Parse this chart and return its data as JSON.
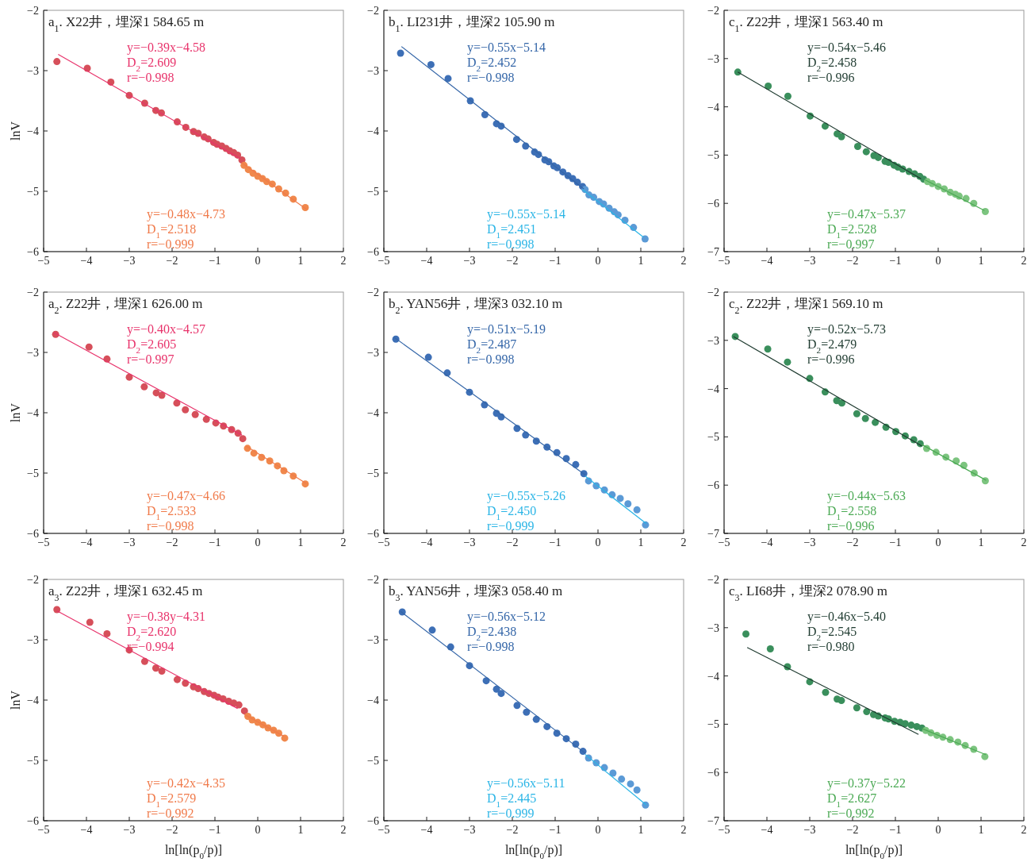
{
  "chart_data": [
    {
      "type": "scatter",
      "title": "a$_{1}$. X22井，埋深1 584.65 m",
      "ylabel": "lnV",
      "xlim": [
        -5,
        2
      ],
      "xticks": [
        -5,
        -4,
        -3,
        -2,
        -1,
        0,
        1,
        2
      ],
      "ylim": [
        -6,
        -2
      ],
      "yticks": [
        -6,
        -5,
        -4,
        -3,
        -2
      ],
      "annotations": [
        "y=−0.39x−4.58",
        "D$_{2}$=2.609",
        "r=−0.998",
        "y=−0.48x−4.73",
        "D$_{1}$=2.518",
        "r=−0.999"
      ],
      "series": [
        {
          "type": "scatter",
          "marker": "circle",
          "color": "#d64f5a",
          "x": [
            -4.69,
            -3.98,
            -3.43,
            -3.0,
            -2.64,
            -2.38,
            -2.25,
            -1.88,
            -1.68,
            -1.5,
            -1.39,
            -1.25,
            -1.16,
            -1.03,
            -0.95,
            -0.84,
            -0.74,
            -0.65,
            -0.56,
            -0.47,
            -0.37
          ],
          "values": [
            -2.85,
            -2.96,
            -3.19,
            -3.41,
            -3.54,
            -3.66,
            -3.7,
            -3.85,
            -3.94,
            -4.01,
            -4.04,
            -4.1,
            -4.13,
            -4.19,
            -4.22,
            -4.25,
            -4.29,
            -4.33,
            -4.36,
            -4.4,
            -4.48
          ]
        },
        {
          "type": "scatter",
          "marker": "circle",
          "color": "#f0884c",
          "x": [
            -0.32,
            -0.22,
            -0.11,
            0.0,
            0.11,
            0.21,
            0.34,
            0.49,
            0.65,
            0.83,
            1.11
          ],
          "values": [
            -4.57,
            -4.64,
            -4.7,
            -4.75,
            -4.79,
            -4.84,
            -4.88,
            -4.96,
            -5.03,
            -5.13,
            -5.27
          ]
        },
        {
          "type": "line",
          "color": "#e8336b",
          "x": [
            -4.66,
            -0.4
          ],
          "values": [
            -2.73,
            -4.46
          ]
        },
        {
          "type": "line",
          "color": "#f07a4a",
          "x": [
            -0.37,
            1.14
          ],
          "values": [
            -4.53,
            -5.3
          ]
        }
      ]
    },
    {
      "type": "scatter",
      "title": "b$_{1}$. LI231井，埋深2 105.90 m",
      "xlim": [
        -5,
        2
      ],
      "xticks": [
        -5,
        -4,
        -3,
        -2,
        -1,
        0,
        1,
        2
      ],
      "ylim": [
        -6,
        -2
      ],
      "yticks": [
        -6,
        -5,
        -4,
        -3,
        -2
      ],
      "annotations": [
        "y=−0.55x−5.14",
        "D$_{2}$=2.452",
        "r=−0.998",
        "y=−0.55x−5.14",
        "D$_{1}$=2.451",
        "r=−0.998"
      ],
      "series": [
        {
          "type": "scatter",
          "marker": "circle",
          "color": "#3d6fb6",
          "x": [
            -4.61,
            -3.9,
            -3.5,
            -2.98,
            -2.64,
            -2.37,
            -2.26,
            -1.9,
            -1.69,
            -1.48,
            -1.39,
            -1.24,
            -1.15,
            -1.03,
            -0.95,
            -0.82,
            -0.7,
            -0.59,
            -0.48,
            -0.36
          ],
          "values": [
            -2.71,
            -2.9,
            -3.13,
            -3.5,
            -3.73,
            -3.88,
            -3.92,
            -4.14,
            -4.25,
            -4.35,
            -4.39,
            -4.48,
            -4.51,
            -4.58,
            -4.61,
            -4.68,
            -4.74,
            -4.79,
            -4.85,
            -4.92
          ]
        },
        {
          "type": "scatter",
          "marker": "circle",
          "color": "#5b9ad6",
          "x": [
            -0.3,
            -0.21,
            -0.1,
            0.03,
            0.13,
            0.26,
            0.38,
            0.47,
            0.63,
            0.83,
            1.1
          ],
          "values": [
            -4.97,
            -5.06,
            -5.1,
            -5.17,
            -5.21,
            -5.28,
            -5.34,
            -5.39,
            -5.48,
            -5.6,
            -5.79
          ]
        },
        {
          "type": "line",
          "color": "#3466a8",
          "x": [
            -4.59,
            -0.33
          ],
          "values": [
            -2.6,
            -4.96
          ]
        },
        {
          "type": "line",
          "color": "#2bb5e6",
          "x": [
            -0.36,
            1.06
          ],
          "values": [
            -4.97,
            -5.76
          ]
        }
      ]
    },
    {
      "type": "scatter",
      "title": "c$_{1}$. Z22井，埋深1 563.40 m",
      "xlim": [
        -5,
        2
      ],
      "xticks": [
        -5,
        -4,
        -3,
        -2,
        -1,
        0,
        1,
        2
      ],
      "ylim": [
        -7,
        -2
      ],
      "yticks": [
        -7,
        -6,
        -5,
        -4,
        -3,
        -2
      ],
      "annotations": [
        "y=−0.54x−5.46",
        "D$_{2}$=2.458",
        "r=−0.996",
        "y=−0.47x−5.37",
        "D$_{1}$=2.528",
        "r=−0.997"
      ],
      "series": [
        {
          "type": "scatter",
          "marker": "circle",
          "color": "#3a8f5c",
          "x": [
            -4.68,
            -3.97,
            -3.51,
            -2.99,
            -2.64,
            -2.36,
            -2.26,
            -1.88,
            -1.68,
            -1.5,
            -1.4,
            -1.24,
            -1.16,
            -1.03,
            -0.94,
            -0.83,
            -0.68,
            -0.55,
            -0.43,
            -0.34
          ],
          "values": [
            -3.28,
            -3.57,
            -3.78,
            -4.19,
            -4.4,
            -4.56,
            -4.62,
            -4.82,
            -4.93,
            -5.01,
            -5.05,
            -5.13,
            -5.15,
            -5.21,
            -5.25,
            -5.29,
            -5.34,
            -5.39,
            -5.44,
            -5.5
          ]
        },
        {
          "type": "scatter",
          "marker": "circle",
          "color": "#7cc47f",
          "x": [
            -0.25,
            -0.14,
            0.0,
            0.14,
            0.28,
            0.4,
            0.49,
            0.65,
            0.83,
            1.1
          ],
          "values": [
            -5.55,
            -5.59,
            -5.65,
            -5.7,
            -5.77,
            -5.81,
            -5.85,
            -5.9,
            -6.0,
            -6.17
          ]
        },
        {
          "type": "line",
          "color": "#1f3b30",
          "x": [
            -4.68,
            -0.4
          ],
          "values": [
            -3.28,
            -5.49
          ]
        },
        {
          "type": "line",
          "color": "#4caa55",
          "x": [
            -0.31,
            1.08
          ],
          "values": [
            -5.51,
            -6.15
          ]
        }
      ]
    },
    {
      "type": "scatter",
      "title": "a$_{2}$. Z22井，埋深1 626.00 m",
      "ylabel": "lnV",
      "xlim": [
        -5,
        2
      ],
      "xticks": [
        -5,
        -4,
        -3,
        -2,
        -1,
        0,
        1,
        2
      ],
      "ylim": [
        -6,
        -2
      ],
      "yticks": [
        -6,
        -5,
        -4,
        -3,
        -2
      ],
      "annotations": [
        "y=−0.40x−4.57",
        "D$_{2}$=2.605",
        "r=−0.997",
        "y=−0.47x−4.66",
        "D$_{1}$=2.533",
        "r=−0.998"
      ],
      "series": [
        {
          "type": "scatter",
          "marker": "circle",
          "color": "#d64f5a",
          "x": [
            -4.72,
            -3.94,
            -3.52,
            -3.0,
            -2.65,
            -2.37,
            -2.24,
            -1.89,
            -1.69,
            -1.46,
            -1.2,
            -0.98,
            -0.8,
            -0.61,
            -0.46,
            -0.35
          ],
          "values": [
            -2.7,
            -2.91,
            -3.11,
            -3.41,
            -3.57,
            -3.67,
            -3.71,
            -3.84,
            -3.95,
            -4.03,
            -4.11,
            -4.17,
            -4.22,
            -4.28,
            -4.34,
            -4.43
          ]
        },
        {
          "type": "scatter",
          "marker": "circle",
          "color": "#f0884c",
          "x": [
            -0.24,
            -0.09,
            0.09,
            0.28,
            0.46,
            0.61,
            0.83,
            1.11
          ],
          "values": [
            -4.59,
            -4.67,
            -4.74,
            -4.8,
            -4.88,
            -4.96,
            -5.05,
            -5.18
          ]
        },
        {
          "type": "line",
          "color": "#e8336b",
          "x": [
            -4.76,
            -0.37
          ],
          "values": [
            -2.67,
            -4.37
          ]
        },
        {
          "type": "line",
          "color": "#f07a4a",
          "x": [
            -0.28,
            1.13
          ],
          "values": [
            -4.55,
            -5.17
          ]
        }
      ]
    },
    {
      "type": "scatter",
      "title": "b$_{2}$. YAN56井，埋深3 032.10 m",
      "xlim": [
        -5,
        2
      ],
      "xticks": [
        -5,
        -4,
        -3,
        -2,
        -1,
        0,
        1,
        2
      ],
      "ylim": [
        -6,
        -2
      ],
      "yticks": [
        -6,
        -5,
        -4,
        -3,
        -2
      ],
      "annotations": [
        "y=−0.51x−5.19",
        "D$_{2}$=2.487",
        "r=−0.998",
        "y=−0.55x−5.26",
        "D$_{1}$=2.450",
        "r=−0.999"
      ],
      "series": [
        {
          "type": "scatter",
          "marker": "circle",
          "color": "#3d6fb6",
          "x": [
            -4.72,
            -3.96,
            -3.52,
            -3.0,
            -2.65,
            -2.37,
            -2.26,
            -1.89,
            -1.69,
            -1.44,
            -1.19,
            -0.96,
            -0.74,
            -0.52,
            -0.33
          ],
          "values": [
            -2.78,
            -3.08,
            -3.34,
            -3.66,
            -3.87,
            -4.01,
            -4.07,
            -4.26,
            -4.37,
            -4.47,
            -4.57,
            -4.66,
            -4.76,
            -4.86,
            -5.01
          ]
        },
        {
          "type": "scatter",
          "marker": "circle",
          "color": "#5b9ad6",
          "x": [
            -0.22,
            -0.04,
            0.15,
            0.33,
            0.52,
            0.7,
            0.91,
            1.11
          ],
          "values": [
            -5.13,
            -5.21,
            -5.28,
            -5.36,
            -5.42,
            -5.51,
            -5.61,
            -5.86
          ]
        },
        {
          "type": "line",
          "color": "#3466a8",
          "x": [
            -4.76,
            -0.3
          ],
          "values": [
            -2.75,
            -5.03
          ]
        },
        {
          "type": "line",
          "color": "#2bb5e6",
          "x": [
            -0.3,
            1.13
          ],
          "values": [
            -5.05,
            -5.84
          ]
        }
      ]
    },
    {
      "type": "scatter",
      "title": "c$_{2}$. Z22井，埋深1 569.10 m",
      "xlim": [
        -5,
        2
      ],
      "xticks": [
        -5,
        -4,
        -3,
        -2,
        -1,
        0,
        1,
        2
      ],
      "ylim": [
        -7,
        -2
      ],
      "yticks": [
        -7,
        -6,
        -5,
        -4,
        -3,
        -2
      ],
      "annotations": [
        "y=−0.52x−5.73",
        "D$_{2}$=2.479",
        "r=−0.996",
        "y=−0.44x−5.63",
        "D$_{1}$=2.558",
        "r=−0.996"
      ],
      "series": [
        {
          "type": "scatter",
          "marker": "circle",
          "color": "#3a8f5c",
          "x": [
            -4.74,
            -3.98,
            -3.52,
            -3.0,
            -2.64,
            -2.37,
            -2.25,
            -1.9,
            -1.7,
            -1.47,
            -1.22,
            -0.99,
            -0.77,
            -0.57,
            -0.42
          ],
          "values": [
            -2.92,
            -3.18,
            -3.45,
            -3.79,
            -4.07,
            -4.25,
            -4.3,
            -4.52,
            -4.62,
            -4.7,
            -4.8,
            -4.89,
            -4.98,
            -5.06,
            -5.14
          ]
        },
        {
          "type": "scatter",
          "marker": "circle",
          "color": "#7cc47f",
          "x": [
            -0.27,
            -0.05,
            0.18,
            0.42,
            0.6,
            0.84,
            1.1
          ],
          "values": [
            -5.24,
            -5.32,
            -5.42,
            -5.5,
            -5.59,
            -5.75,
            -5.91
          ]
        },
        {
          "type": "line",
          "color": "#1f3b30",
          "x": [
            -4.78,
            -0.38
          ],
          "values": [
            -2.92,
            -5.19
          ]
        },
        {
          "type": "line",
          "color": "#4caa55",
          "x": [
            -0.38,
            1.12
          ],
          "values": [
            -5.16,
            -5.9
          ]
        }
      ]
    },
    {
      "type": "scatter",
      "title": "a$_{3}$. Z22井，埋深1 632.45 m",
      "ylabel": "lnV",
      "xlabel": "ln[ln(p$_{0}$/p)]",
      "xlim": [
        -5,
        2
      ],
      "xticks": [
        -5,
        -4,
        -3,
        -2,
        -1,
        0,
        1,
        2
      ],
      "ylim": [
        -6,
        -2
      ],
      "yticks": [
        -6,
        -5,
        -4,
        -3,
        -2
      ],
      "annotations": [
        "y=−0.38y−4.31",
        "D$_{2}$=2.620",
        "r=−0.994",
        "y=−0.42x−4.35",
        "D$_{1}$=2.579",
        "r=−0.992"
      ],
      "series": [
        {
          "type": "scatter",
          "marker": "circle",
          "color": "#d64f5a",
          "x": [
            -4.69,
            -3.92,
            -3.52,
            -3.0,
            -2.64,
            -2.38,
            -2.24,
            -1.88,
            -1.69,
            -1.5,
            -1.39,
            -1.25,
            -1.14,
            -1.02,
            -0.93,
            -0.81,
            -0.68,
            -0.56,
            -0.44,
            -0.31
          ],
          "values": [
            -2.5,
            -2.71,
            -2.9,
            -3.17,
            -3.36,
            -3.47,
            -3.52,
            -3.66,
            -3.72,
            -3.78,
            -3.81,
            -3.86,
            -3.89,
            -3.92,
            -3.95,
            -3.98,
            -4.02,
            -4.05,
            -4.08,
            -4.18
          ]
        },
        {
          "type": "scatter",
          "marker": "circle",
          "color": "#f0884c",
          "x": [
            -0.23,
            -0.13,
            0.0,
            0.12,
            0.24,
            0.37,
            0.49,
            0.63
          ],
          "values": [
            -4.27,
            -4.33,
            -4.37,
            -4.41,
            -4.46,
            -4.5,
            -4.55,
            -4.63
          ]
        },
        {
          "type": "line",
          "color": "#e8336b",
          "x": [
            -4.69,
            -0.47
          ],
          "values": [
            -2.52,
            -4.14
          ]
        },
        {
          "type": "line",
          "color": "#f07a4a",
          "x": [
            -0.31,
            0.61
          ],
          "values": [
            -4.24,
            -4.6
          ]
        }
      ]
    },
    {
      "type": "scatter",
      "title": "b$_{3}$. YAN56井，埋深3 058.40 m",
      "xlabel": "ln[ln(p$_{0}$/p)]",
      "xlim": [
        -5,
        2
      ],
      "xticks": [
        -5,
        -4,
        -3,
        -2,
        -1,
        0,
        1,
        2
      ],
      "ylim": [
        -6,
        -2
      ],
      "yticks": [
        -6,
        -5,
        -4,
        -3,
        -2
      ],
      "annotations": [
        "y=−0.56x−5.12",
        "D$_{2}$=2.438",
        "r=−0.998",
        "y=−0.56x−5.11",
        "D$_{1}$=2.445",
        "r=−0.999"
      ],
      "series": [
        {
          "type": "scatter",
          "marker": "circle",
          "color": "#3d6fb6",
          "x": [
            -4.57,
            -3.87,
            -3.44,
            -3.0,
            -2.61,
            -2.37,
            -2.26,
            -1.89,
            -1.67,
            -1.44,
            -1.19,
            -0.96,
            -0.74,
            -0.52,
            -0.35
          ],
          "values": [
            -2.54,
            -2.84,
            -3.12,
            -3.43,
            -3.68,
            -3.82,
            -3.89,
            -4.09,
            -4.2,
            -4.32,
            -4.44,
            -4.55,
            -4.64,
            -4.73,
            -4.85
          ]
        },
        {
          "type": "scatter",
          "marker": "circle",
          "color": "#5b9ad6",
          "x": [
            -0.22,
            -0.04,
            0.15,
            0.35,
            0.55,
            0.76,
            0.91,
            1.11
          ],
          "values": [
            -4.96,
            -5.04,
            -5.12,
            -5.21,
            -5.31,
            -5.39,
            -5.49,
            -5.74
          ]
        },
        {
          "type": "line",
          "color": "#3466a8",
          "x": [
            -4.61,
            -0.3
          ],
          "values": [
            -2.53,
            -4.88
          ]
        },
        {
          "type": "line",
          "color": "#2bb5e6",
          "x": [
            -0.3,
            1.13
          ],
          "values": [
            -4.9,
            -5.74
          ]
        }
      ]
    },
    {
      "type": "scatter",
      "title": "c$_{3}$. LI68井，埋深2 078.90 m",
      "xlabel": "ln[ln(p$_{0}$/p)]",
      "xlim": [
        -5,
        2
      ],
      "xticks": [
        -5,
        -4,
        -3,
        -2,
        -1,
        0,
        1,
        2
      ],
      "ylim": [
        -7,
        -2
      ],
      "yticks": [
        -7,
        -6,
        -5,
        -4,
        -3,
        -2
      ],
      "annotations": [
        "y=−0.46x−5.40",
        "D$_{2}$=2.545",
        "r=−0.980",
        "y=−0.37y−5.22",
        "D$_{1}$=2.627",
        "r=−0.992"
      ],
      "series": [
        {
          "type": "scatter",
          "marker": "circle",
          "color": "#3a8f5c",
          "x": [
            -4.49,
            -3.92,
            -3.52,
            -3.0,
            -2.63,
            -2.36,
            -2.26,
            -1.9,
            -1.67,
            -1.51,
            -1.4,
            -1.24,
            -1.16,
            -1.02,
            -0.89,
            -0.77,
            -0.63,
            -0.5,
            -0.38
          ],
          "values": [
            -3.13,
            -3.44,
            -3.81,
            -4.12,
            -4.34,
            -4.48,
            -4.51,
            -4.66,
            -4.74,
            -4.8,
            -4.83,
            -4.87,
            -4.89,
            -4.94,
            -4.96,
            -4.99,
            -5.02,
            -5.05,
            -5.08
          ]
        },
        {
          "type": "scatter",
          "marker": "circle",
          "color": "#7cc47f",
          "x": [
            -0.29,
            -0.17,
            -0.03,
            0.11,
            0.28,
            0.46,
            0.63,
            0.83,
            1.09
          ],
          "values": [
            -5.13,
            -5.18,
            -5.23,
            -5.27,
            -5.32,
            -5.37,
            -5.44,
            -5.52,
            -5.67
          ]
        },
        {
          "type": "line",
          "color": "#1f3b30",
          "x": [
            -4.46,
            -0.46
          ],
          "values": [
            -3.41,
            -5.21
          ]
        },
        {
          "type": "line",
          "color": "#4caa55",
          "x": [
            -0.38,
            1.11
          ],
          "values": [
            -5.09,
            -5.63
          ]
        }
      ]
    }
  ]
}
